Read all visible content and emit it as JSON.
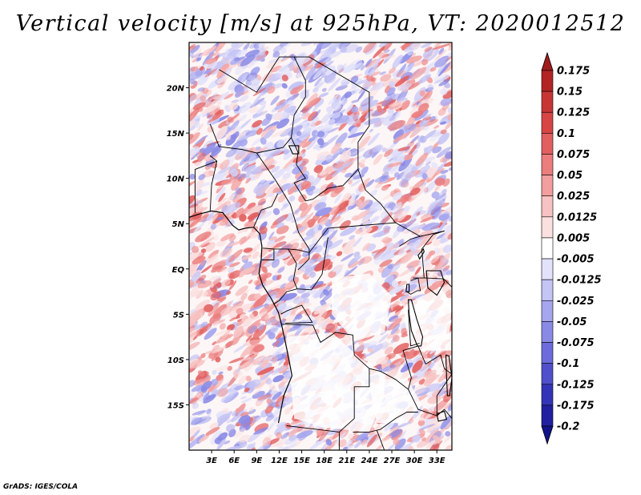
{
  "title": "Vertical velocity [m/s] at 925hPa, VT: 2020012512",
  "credit": "GrADS: IGES/COLA",
  "map": {
    "lon_range": [
      0,
      35
    ],
    "lat_range": [
      -20,
      25
    ],
    "lat_ticks": [
      {
        "value": 20,
        "label": "20N"
      },
      {
        "value": 15,
        "label": "15N"
      },
      {
        "value": 10,
        "label": "10N"
      },
      {
        "value": 5,
        "label": "5N"
      },
      {
        "value": 0,
        "label": "EQ"
      },
      {
        "value": -5,
        "label": "5S"
      },
      {
        "value": -10,
        "label": "10S"
      },
      {
        "value": -15,
        "label": "15S"
      }
    ],
    "lon_ticks": [
      {
        "value": 3,
        "label": "3E"
      },
      {
        "value": 6,
        "label": "6E"
      },
      {
        "value": 9,
        "label": "9E"
      },
      {
        "value": 12,
        "label": "12E"
      },
      {
        "value": 15,
        "label": "15E"
      },
      {
        "value": 18,
        "label": "18E"
      },
      {
        "value": 21,
        "label": "21E"
      },
      {
        "value": 24,
        "label": "24E"
      },
      {
        "value": 27,
        "label": "27E"
      },
      {
        "value": 30,
        "label": "30E"
      },
      {
        "value": 33,
        "label": "33E"
      }
    ]
  },
  "colorbar": {
    "labels": [
      "0.175",
      "0.15",
      "0.125",
      "0.1",
      "0.075",
      "0.05",
      "0.025",
      "0.0125",
      "0.005",
      "-0.005",
      "-0.0125",
      "-0.025",
      "-0.05",
      "-0.075",
      "-0.1",
      "-0.125",
      "-0.175",
      "-0.2"
    ],
    "colors": [
      "#a01c1c",
      "#b32424",
      "#c83535",
      "#d84545",
      "#e25f5f",
      "#eb7d7d",
      "#f29e9e",
      "#f7c2c2",
      "#fbe0e0",
      "#ffffff",
      "#e2e2fb",
      "#c4c4f5",
      "#a6a6ee",
      "#8a8ae6",
      "#6c6cdc",
      "#5050cc",
      "#3434b8",
      "#2020a0",
      "#12128a"
    ]
  },
  "colors": {
    "positive": "#e05050",
    "negative": "#5a5adc",
    "boundary": "#000000"
  }
}
